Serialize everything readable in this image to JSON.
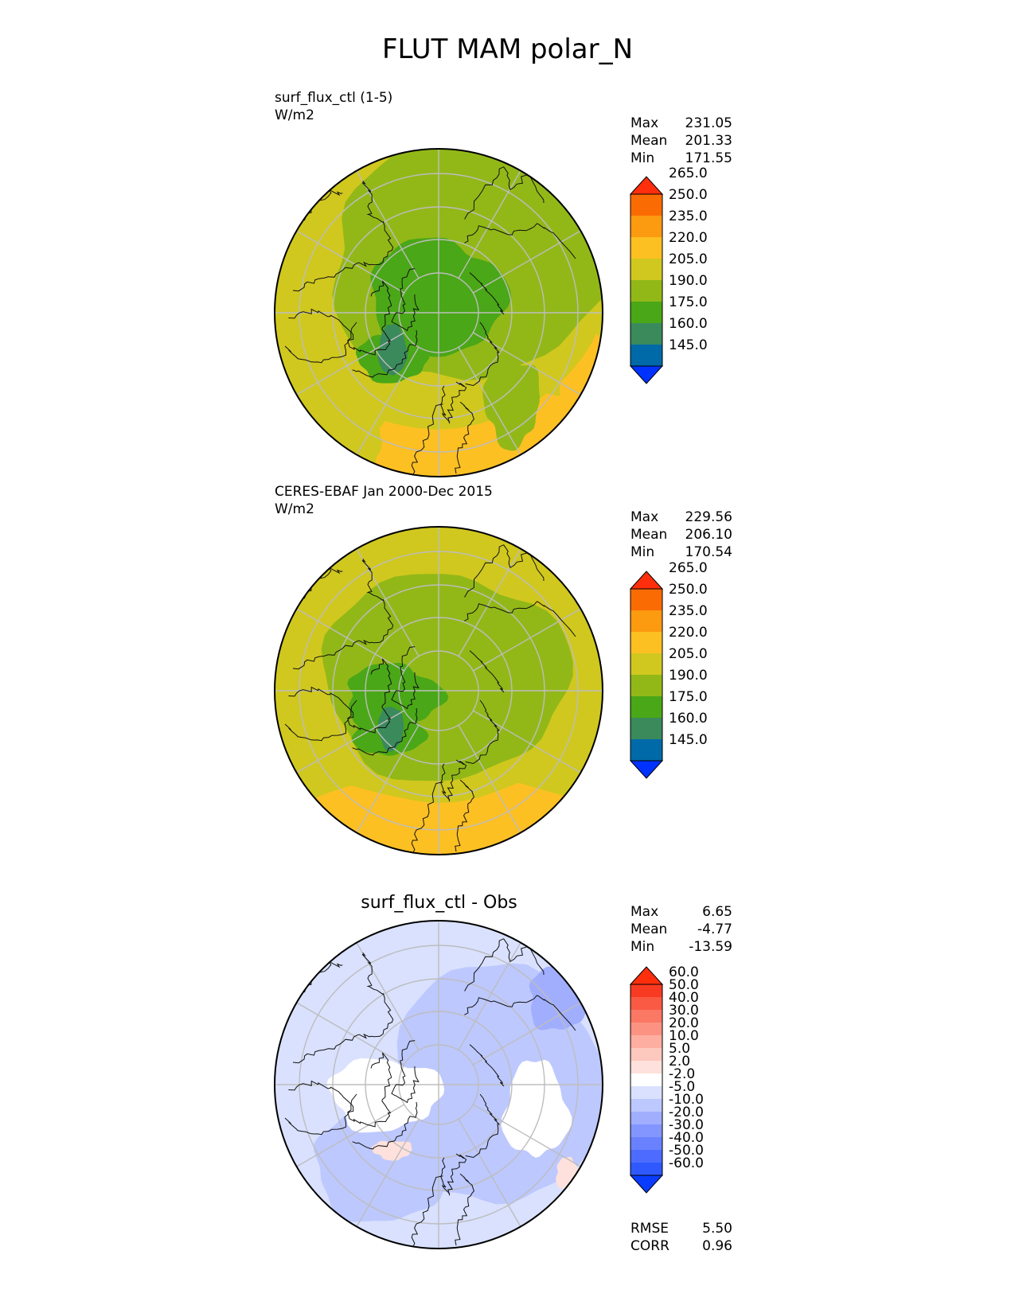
{
  "figure": {
    "title": "FLUT MAM polar_N"
  },
  "colors": {
    "ctl_levels": [
      "#0032ff",
      "#006aa8",
      "#3a8a5c",
      "#4aa717",
      "#92b818",
      "#d0c81e",
      "#fdc023",
      "#fc9a10",
      "#fa6b04",
      "#ff2e0c"
    ],
    "diff_levels": [
      "#0a3cff",
      "#2f59ff",
      "#4d6cff",
      "#6a81ff",
      "#8396ff",
      "#a1aefe",
      "#bdc8fe",
      "#d9e1fe",
      "#ffffff",
      "#fee1dc",
      "#fdc8bd",
      "#fdaea0",
      "#fc9382",
      "#fb7864",
      "#fa5a44",
      "#f93a22",
      "#ff2e0c"
    ],
    "coast": "#111111",
    "grid": "#bdbdbd"
  },
  "panels": [
    {
      "id": "test",
      "label_line1": "surf_flux_ctl (1-5)",
      "label_line2": "W/m2",
      "stat_labels": [
        "Max",
        "Mean",
        "Min"
      ],
      "stat_values": [
        "231.05",
        "201.33",
        "171.55"
      ]
    },
    {
      "id": "ref",
      "label_line1": "CERES-EBAF Jan 2000-Dec 2015",
      "label_line2": "W/m2",
      "stat_labels": [
        "Max",
        "Mean",
        "Min"
      ],
      "stat_values": [
        "229.56",
        "206.10",
        "170.54"
      ]
    },
    {
      "id": "diff",
      "title": "surf_flux_ctl - Obs",
      "stat_labels": [
        "Max",
        "Mean",
        "Min"
      ],
      "stat_values": [
        "6.65",
        "-4.77",
        "-13.59"
      ],
      "extra_labels": [
        "RMSE",
        "CORR"
      ],
      "extra_values": [
        "5.50",
        "0.96"
      ]
    }
  ],
  "chart_data": [
    {
      "type": "heatmap",
      "projection": "north-polar-stereographic",
      "title": "surf_flux_ctl (1-5)",
      "units": "W/m2",
      "stats": {
        "max": 231.05,
        "mean": 201.33,
        "min": 171.55
      },
      "colorbar_ticks": [
        "145.0",
        "160.0",
        "175.0",
        "190.0",
        "205.0",
        "220.0",
        "235.0",
        "250.0",
        "265.0"
      ],
      "colorbar_extend": "both"
    },
    {
      "type": "heatmap",
      "projection": "north-polar-stereographic",
      "title": "CERES-EBAF Jan 2000-Dec 2015",
      "units": "W/m2",
      "stats": {
        "max": 229.56,
        "mean": 206.1,
        "min": 170.54
      },
      "colorbar_ticks": [
        "145.0",
        "160.0",
        "175.0",
        "190.0",
        "205.0",
        "220.0",
        "235.0",
        "250.0",
        "265.0"
      ],
      "colorbar_extend": "both"
    },
    {
      "type": "heatmap",
      "projection": "north-polar-stereographic",
      "title": "surf_flux_ctl - Obs",
      "stats": {
        "max": 6.65,
        "mean": -4.77,
        "min": -13.59,
        "rmse": 5.5,
        "corr": 0.96
      },
      "colorbar_ticks": [
        "-60.0",
        "-50.0",
        "-40.0",
        "-30.0",
        "-20.0",
        "-10.0",
        "-5.0",
        "-2.0",
        "2.0",
        "5.0",
        "10.0",
        "20.0",
        "30.0",
        "40.0",
        "50.0",
        "60.0"
      ],
      "colorbar_extend": "both"
    }
  ]
}
